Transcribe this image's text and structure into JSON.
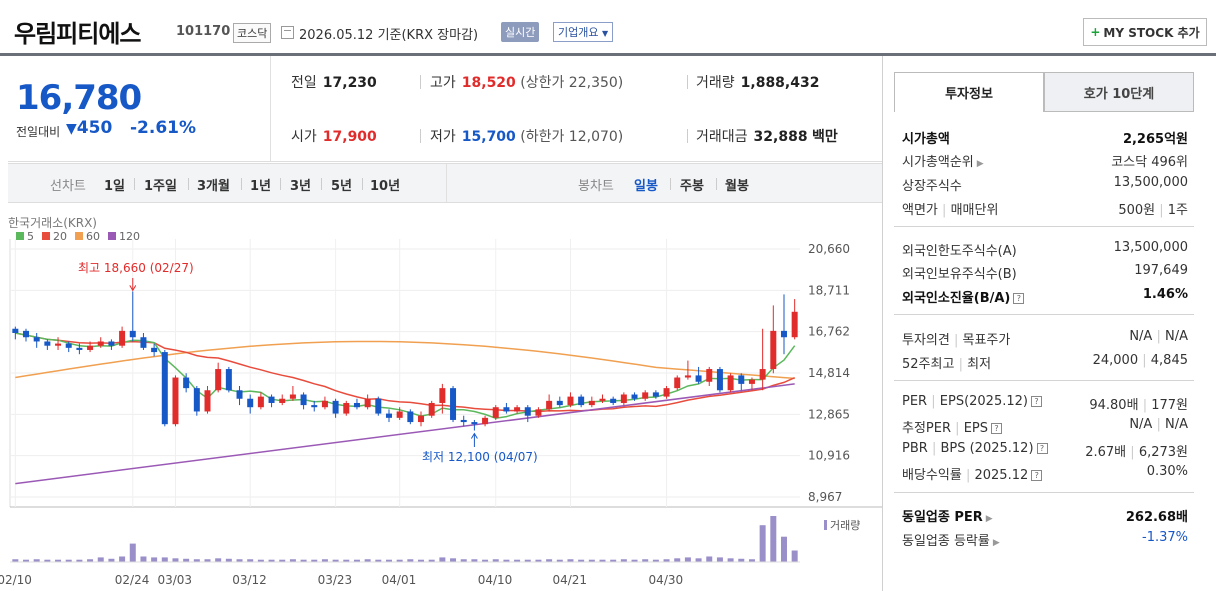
{
  "header": {
    "company": "우림피티에스",
    "code": "101170",
    "market": "코스닥",
    "date": "2026.05.12 기준(KRX 장마감)",
    "realtime": "실시간",
    "overview": "기업개요",
    "mystock": "MY STOCK 추가"
  },
  "price": {
    "current": "16,780",
    "prev_label": "전일대비",
    "change": "450",
    "change_pct": "-2.61%",
    "prev_close_label": "전일",
    "prev_close": "17,230",
    "high_label": "고가",
    "high": "18,520",
    "upper_limit": "(상한가 22,350)",
    "volume_label": "거래량",
    "volume": "1,888,432",
    "open_label": "시가",
    "open": "17,900",
    "low_label": "저가",
    "low": "15,700",
    "lower_limit": "(하한가 12,070)",
    "amount_label": "거래대금",
    "amount": "32,888",
    "amount_unit": "백만"
  },
  "period_bar": {
    "line_label": "선차트",
    "periods": [
      "1일",
      "1주일",
      "3개월",
      "1년",
      "3년",
      "5년",
      "10년"
    ],
    "candle_label": "봉차트",
    "candles": [
      "일봉",
      "주봉",
      "월봉"
    ]
  },
  "chart_data": {
    "type": "candlestick",
    "source": "한국거래소(KRX)",
    "legend": [
      {
        "name": "5",
        "color": "#5cb85c"
      },
      {
        "name": "20",
        "color": "#e84c3d"
      },
      {
        "name": "60",
        "color": "#f0a050"
      },
      {
        "name": "120",
        "color": "#9b59b6"
      }
    ],
    "y_ticks": [
      "20,660",
      "18,711",
      "16,762",
      "14,814",
      "12,865",
      "10,916",
      "8,967"
    ],
    "ylim": [
      8967,
      20660
    ],
    "x_ticks": [
      "02/10",
      "02/24",
      "03/03",
      "03/12",
      "03/23",
      "04/01",
      "04/10",
      "04/21",
      "04/30"
    ],
    "high_annotation": "최고 18,660 (02/27)",
    "low_annotation": "최저 12,100 (04/07)",
    "volume_label": "거래량",
    "candles": [
      [
        16900,
        16700,
        17000,
        16400
      ],
      [
        16800,
        16500,
        16900,
        16300
      ],
      [
        16500,
        16300,
        16700,
        16000
      ],
      [
        16300,
        16100,
        16400,
        15900
      ],
      [
        16100,
        16200,
        16500,
        15900
      ],
      [
        16200,
        16000,
        16300,
        15800
      ],
      [
        16000,
        15900,
        16200,
        15700
      ],
      [
        15900,
        16100,
        16300,
        15800
      ],
      [
        16100,
        16300,
        16500,
        16000
      ],
      [
        16300,
        16100,
        16400,
        15900
      ],
      [
        16100,
        16800,
        17000,
        16000
      ],
      [
        16800,
        16500,
        18660,
        16300
      ],
      [
        16500,
        16000,
        16700,
        15900
      ],
      [
        16000,
        15800,
        16200,
        15600
      ],
      [
        15800,
        12400,
        15900,
        12300
      ],
      [
        12400,
        14600,
        14700,
        12300
      ],
      [
        14600,
        14100,
        14800,
        13900
      ],
      [
        14100,
        13000,
        14200,
        12800
      ],
      [
        13000,
        14000,
        14200,
        12900
      ],
      [
        14000,
        15000,
        15300,
        13900
      ],
      [
        15000,
        14000,
        15100,
        13900
      ],
      [
        14000,
        13600,
        14200,
        13300
      ],
      [
        13600,
        13200,
        13800,
        12900
      ],
      [
        13200,
        13700,
        13900,
        13100
      ],
      [
        13700,
        13400,
        13800,
        13200
      ],
      [
        13400,
        13600,
        13800,
        13300
      ],
      [
        13600,
        13800,
        14200,
        13500
      ],
      [
        13800,
        13300,
        13900,
        13100
      ],
      [
        13300,
        13200,
        13500,
        13000
      ],
      [
        13200,
        13500,
        13700,
        13100
      ],
      [
        13500,
        12900,
        13600,
        12700
      ],
      [
        12900,
        13400,
        13500,
        12800
      ],
      [
        13400,
        13200,
        13600,
        13100
      ],
      [
        13200,
        13600,
        13800,
        13100
      ],
      [
        13600,
        12900,
        13700,
        12800
      ],
      [
        12900,
        12700,
        13100,
        12500
      ],
      [
        12700,
        13000,
        13200,
        12600
      ],
      [
        13000,
        12500,
        13100,
        12400
      ],
      [
        12500,
        12800,
        13000,
        12300
      ],
      [
        12800,
        13400,
        13500,
        12700
      ],
      [
        13400,
        14100,
        14300,
        12900
      ],
      [
        14100,
        12600,
        14200,
        12500
      ],
      [
        12600,
        12500,
        12800,
        12300
      ],
      [
        12500,
        12400,
        12600,
        12100
      ],
      [
        12400,
        12700,
        12800,
        12300
      ],
      [
        12700,
        13200,
        13300,
        12600
      ],
      [
        13200,
        13000,
        13400,
        12900
      ],
      [
        13000,
        13200,
        13300,
        12900
      ],
      [
        13200,
        12800,
        13300,
        12500
      ],
      [
        12800,
        13100,
        13200,
        12700
      ],
      [
        13100,
        13500,
        13800,
        13000
      ],
      [
        13500,
        13300,
        13700,
        13200
      ],
      [
        13300,
        13700,
        13900,
        13200
      ],
      [
        13700,
        13300,
        13800,
        13200
      ],
      [
        13300,
        13500,
        13700,
        13200
      ],
      [
        13500,
        13600,
        13800,
        13400
      ],
      [
        13600,
        13400,
        13700,
        13300
      ],
      [
        13400,
        13800,
        13900,
        13300
      ],
      [
        13800,
        13600,
        13900,
        13500
      ],
      [
        13600,
        13900,
        14000,
        13500
      ],
      [
        13900,
        13700,
        14000,
        13600
      ],
      [
        13700,
        14100,
        14200,
        13600
      ],
      [
        14100,
        14600,
        14700,
        14000
      ],
      [
        14600,
        14700,
        15400,
        14500
      ],
      [
        14700,
        14400,
        15100,
        14300
      ],
      [
        14400,
        15000,
        15100,
        14200
      ],
      [
        15000,
        14000,
        15100,
        13900
      ],
      [
        14000,
        14700,
        14800,
        13900
      ],
      [
        14700,
        14300,
        14800,
        14000
      ],
      [
        14300,
        14500,
        14600,
        14000
      ],
      [
        14500,
        15000,
        16900,
        14000
      ],
      [
        15000,
        16800,
        18000,
        14800
      ],
      [
        16800,
        16500,
        18520,
        15700
      ],
      [
        16500,
        17700,
        18300,
        16400
      ]
    ],
    "ma120": [
      [
        0,
        9600
      ],
      [
        73,
        14300
      ]
    ],
    "volumes": [
      0.06,
      0.05,
      0.06,
      0.05,
      0.05,
      0.05,
      0.05,
      0.06,
      0.1,
      0.07,
      0.12,
      0.4,
      0.12,
      0.1,
      0.1,
      0.08,
      0.07,
      0.06,
      0.06,
      0.08,
      0.07,
      0.06,
      0.06,
      0.05,
      0.05,
      0.05,
      0.06,
      0.05,
      0.05,
      0.06,
      0.05,
      0.05,
      0.05,
      0.06,
      0.05,
      0.05,
      0.05,
      0.06,
      0.05,
      0.05,
      0.1,
      0.08,
      0.06,
      0.06,
      0.05,
      0.06,
      0.05,
      0.05,
      0.05,
      0.05,
      0.06,
      0.05,
      0.06,
      0.05,
      0.05,
      0.05,
      0.05,
      0.06,
      0.05,
      0.06,
      0.05,
      0.06,
      0.08,
      0.1,
      0.08,
      0.12,
      0.1,
      0.08,
      0.07,
      0.06,
      0.8,
      1.0,
      0.55,
      0.25
    ]
  },
  "tabs": {
    "invest": "투자정보",
    "quote": "호가 10단계"
  },
  "invest": {
    "mktcap_label": "시가총액",
    "mktcap": "2,265억원",
    "rank_label": "시가총액순위",
    "rank": "코스닥 496위",
    "shares_label": "상장주식수",
    "shares": "13,500,000",
    "par_label": "액면가",
    "unit_label": "매매단위",
    "par": "500원",
    "unit": "1주",
    "forlimit_label": "외국인한도주식수(A)",
    "forlimit": "13,500,000",
    "forhold_label": "외국인보유주식수(B)",
    "forhold": "197,649",
    "forrate_label": "외국인소진율(B/A)",
    "forrate": "1.46%",
    "opinion_label": "투자의견",
    "target_label": "목표주가",
    "opinion": "N/A",
    "target": "N/A",
    "w52_label": "52주최고",
    "w52low_label": "최저",
    "w52high": "24,000",
    "w52low": "4,845",
    "per_label": "PER",
    "eps_label": "EPS(2025.12)",
    "per": "94.80배",
    "eps": "177원",
    "eper_label": "추정PER",
    "eeps_label": "EPS",
    "eper": "N/A",
    "eeps": "N/A",
    "pbr_label": "PBR",
    "bps_label": "BPS (2025.12)",
    "pbr": "2.67배",
    "bps": "6,273원",
    "div_label": "배당수익률",
    "div_date": "2025.12",
    "div": "0.30%",
    "sector_per_label": "동일업종 PER",
    "sector_per": "262.68배",
    "sector_chg_label": "동일업종 등락률",
    "sector_chg": "-1.37%"
  }
}
